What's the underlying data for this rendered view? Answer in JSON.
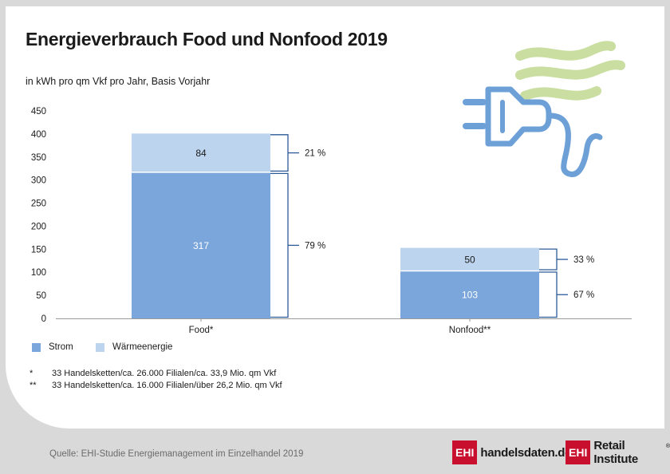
{
  "chart_data": {
    "type": "bar",
    "stacked": true,
    "title": "Energieverbrauch Food und Nonfood 2019",
    "unit_label": "in kWh pro qm Vkf pro Jahr, Basis Vorjahr",
    "categories": [
      "Food*",
      "Nonfood**"
    ],
    "series": [
      {
        "name": "Strom",
        "values": [
          317,
          103
        ],
        "shares": [
          "79 %",
          "67 %"
        ],
        "color": "#7aa6dc"
      },
      {
        "name": "Wärmeenergie",
        "values": [
          84,
          50
        ],
        "shares": [
          "21 %",
          "33 %"
        ],
        "color": "#bdd4ee"
      }
    ],
    "yticks": [
      0,
      50,
      100,
      150,
      200,
      250,
      300,
      350,
      400,
      450
    ],
    "ylim": [
      0,
      450
    ],
    "grid": false,
    "legend_position": "bottom-left"
  },
  "footnotes": [
    {
      "marker": "*",
      "text": "33 Handelsketten/ca. 26.000 Filialen/ca. 33,9 Mio. qm Vkf"
    },
    {
      "marker": "**",
      "text": "33 Handelsketten/ca. 16.000 Filialen/über 26,2 Mio. qm Vkf"
    }
  ],
  "source": "Quelle: EHI-Studie Energiemanagement im Einzelhandel 2019",
  "logos": {
    "handelsdaten": {
      "badge": "EHI",
      "text": "handelsdaten.de"
    },
    "retail_institute": {
      "badge": "EHI",
      "text": "Retail Institute",
      "reg": "®"
    }
  },
  "colors": {
    "strom": "#7aa6dc",
    "waerme": "#bdd4ee",
    "bracket": "#2c5a99",
    "ehi_red": "#c8102e",
    "icon_blue": "#6ea0d8",
    "icon_green": "#c9dea0"
  },
  "icon": "power-plug-icon"
}
